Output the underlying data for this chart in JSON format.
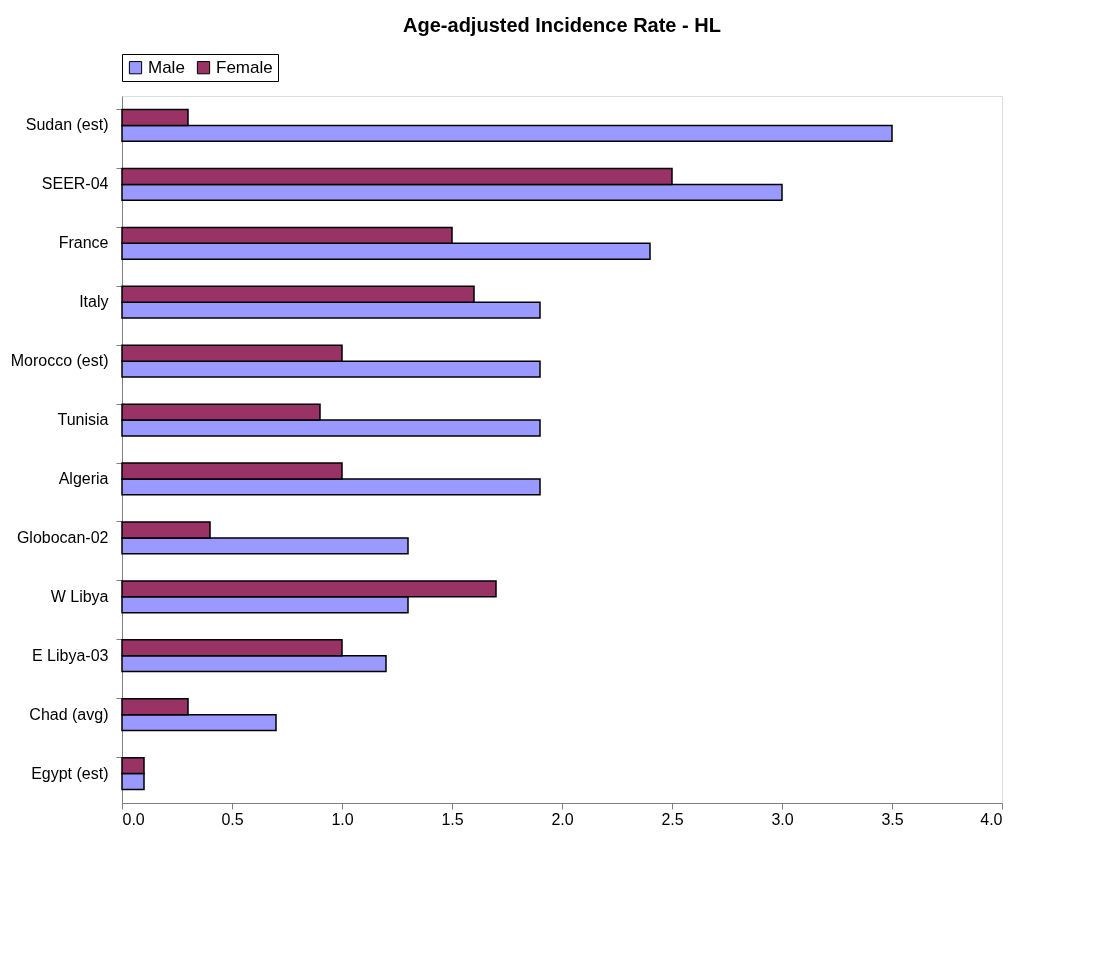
{
  "chart_data": {
    "type": "bar",
    "orientation": "horizontal",
    "title": "Age-adjusted Incidence Rate - HL",
    "categories": [
      "Sudan (est)",
      "SEER-04",
      "France",
      "Italy",
      "Morocco (est)",
      "Tunisia",
      "Algeria",
      "Globocan-02",
      "W Libya",
      "E Libya-03",
      "Chad (avg)",
      "Egypt (est)"
    ],
    "series": [
      {
        "name": "Male",
        "color": "#9999ff",
        "values": [
          3.5,
          3.0,
          2.4,
          1.9,
          1.9,
          1.9,
          1.9,
          1.3,
          1.3,
          1.2,
          0.7,
          0.1
        ]
      },
      {
        "name": "Female",
        "color": "#993366",
        "values": [
          0.3,
          2.5,
          1.5,
          1.6,
          1.0,
          0.9,
          1.0,
          0.4,
          1.7,
          1.0,
          0.3,
          0.1
        ]
      }
    ],
    "xlim": [
      0,
      4
    ],
    "xticks": [
      {
        "value": 0,
        "label": "0.0"
      },
      {
        "value": 0.5,
        "label": "0.5"
      },
      {
        "value": 1,
        "label": "1.0"
      },
      {
        "value": 1.5,
        "label": "1.5"
      },
      {
        "value": 2,
        "label": "2.0"
      },
      {
        "value": 2.5,
        "label": "2.5"
      },
      {
        "value": 3,
        "label": "3.0"
      },
      {
        "value": 3.5,
        "label": "3.5"
      },
      {
        "value": 4,
        "label": "4.0"
      }
    ],
    "grid": false,
    "legend": "top"
  }
}
